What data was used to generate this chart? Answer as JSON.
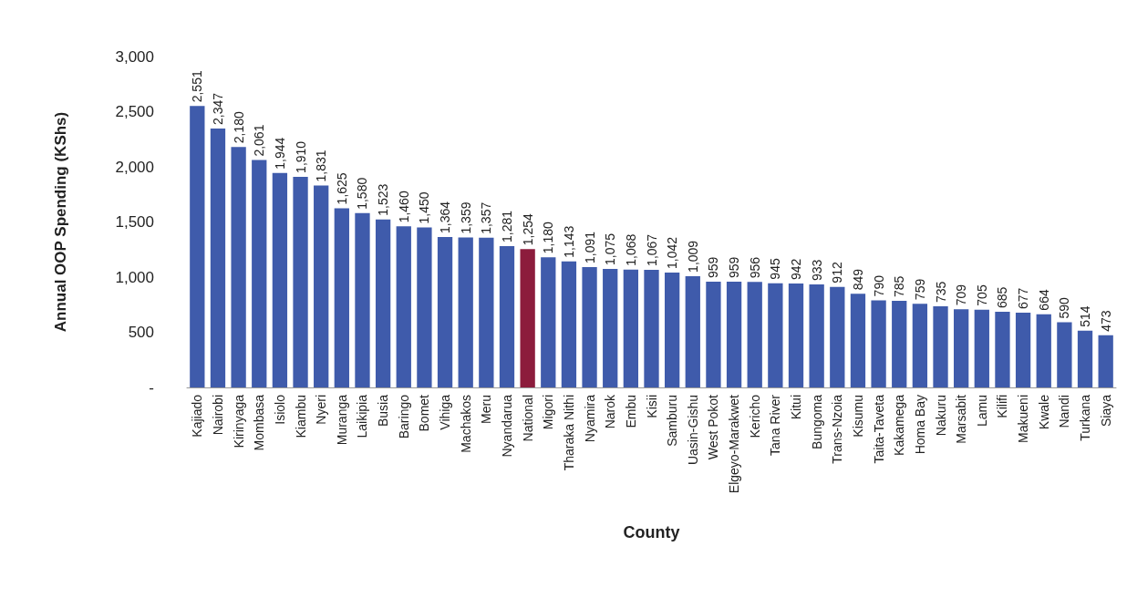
{
  "chart_data": {
    "type": "bar",
    "xlabel": "County",
    "ylabel": "Annual OOP Spending (KShs)",
    "categories": [
      "Kajiado",
      "Nairobi",
      "Kirinyaga",
      "Mombasa",
      "Isiolo",
      "Kiambu",
      "Nyeri",
      "Muranga",
      "Laikipia",
      "Busia",
      "Baringo",
      "Bomet",
      "Vihiga",
      "Machakos",
      "Meru",
      "Nyandarua",
      "National",
      "Migori",
      "Tharaka Nithi",
      "Nyamira",
      "Narok",
      "Embu",
      "Kisii",
      "Samburu",
      "Uasin-Gishu",
      "West Pokot",
      "Elgeyo-Marakwet",
      "Kericho",
      "Tana River",
      "Kitui",
      "Bungoma",
      "Trans-Nzoia",
      "Kisumu",
      "Taita-Taveta",
      "Kakamega",
      "Homa Bay",
      "Nakuru",
      "Marsabit",
      "Lamu",
      "Kilifi",
      "Makueni",
      "Kwale",
      "Nandi",
      "Turkana",
      "Siaya"
    ],
    "values": [
      2551,
      2347,
      2180,
      2061,
      1944,
      1910,
      1831,
      1625,
      1580,
      1523,
      1460,
      1450,
      1364,
      1359,
      1357,
      1281,
      1254,
      1180,
      1143,
      1091,
      1075,
      1068,
      1067,
      1042,
      1009,
      959,
      959,
      956,
      945,
      942,
      933,
      912,
      849,
      790,
      785,
      759,
      735,
      709,
      705,
      685,
      677,
      664,
      590,
      514,
      473
    ],
    "value_labels": [
      "2,551",
      "2,347",
      "2,180",
      "2,061",
      "1,944",
      "1,910",
      "1,831",
      "1,625",
      "1,580",
      "1,523",
      "1,460",
      "1,450",
      "1,364",
      "1,359",
      "1,357",
      "1,281",
      "1,254",
      "1,180",
      "1,143",
      "1,091",
      "1,075",
      "1,068",
      "1,067",
      "1,042",
      "1,009",
      "959",
      "959",
      "956",
      "945",
      "942",
      "933",
      "912",
      "849",
      "790",
      "785",
      "759",
      "735",
      "709",
      "705",
      "685",
      "677",
      "664",
      "590",
      "514",
      "473"
    ],
    "colors": [
      "#3f5bab",
      "#3f5bab",
      "#3f5bab",
      "#3f5bab",
      "#3f5bab",
      "#3f5bab",
      "#3f5bab",
      "#3f5bab",
      "#3f5bab",
      "#3f5bab",
      "#3f5bab",
      "#3f5bab",
      "#3f5bab",
      "#3f5bab",
      "#3f5bab",
      "#3f5bab",
      "#8c1c3c",
      "#3f5bab",
      "#3f5bab",
      "#3f5bab",
      "#3f5bab",
      "#3f5bab",
      "#3f5bab",
      "#3f5bab",
      "#3f5bab",
      "#3f5bab",
      "#3f5bab",
      "#3f5bab",
      "#3f5bab",
      "#3f5bab",
      "#3f5bab",
      "#3f5bab",
      "#3f5bab",
      "#3f5bab",
      "#3f5bab",
      "#3f5bab",
      "#3f5bab",
      "#3f5bab",
      "#3f5bab",
      "#3f5bab",
      "#3f5bab",
      "#3f5bab",
      "#3f5bab",
      "#3f5bab",
      "#3f5bab"
    ],
    "ylim": [
      0,
      3000
    ],
    "yticks": [
      {
        "value": 0,
        "label": "-"
      },
      500,
      {
        "value": 1000,
        "label": "1,000"
      },
      {
        "value": 1500,
        "label": "1,500"
      },
      {
        "value": 2000,
        "label": "2,000"
      },
      {
        "value": 2500,
        "label": "2,500"
      },
      {
        "value": 3000,
        "label": "3,000"
      }
    ],
    "grid": false
  }
}
